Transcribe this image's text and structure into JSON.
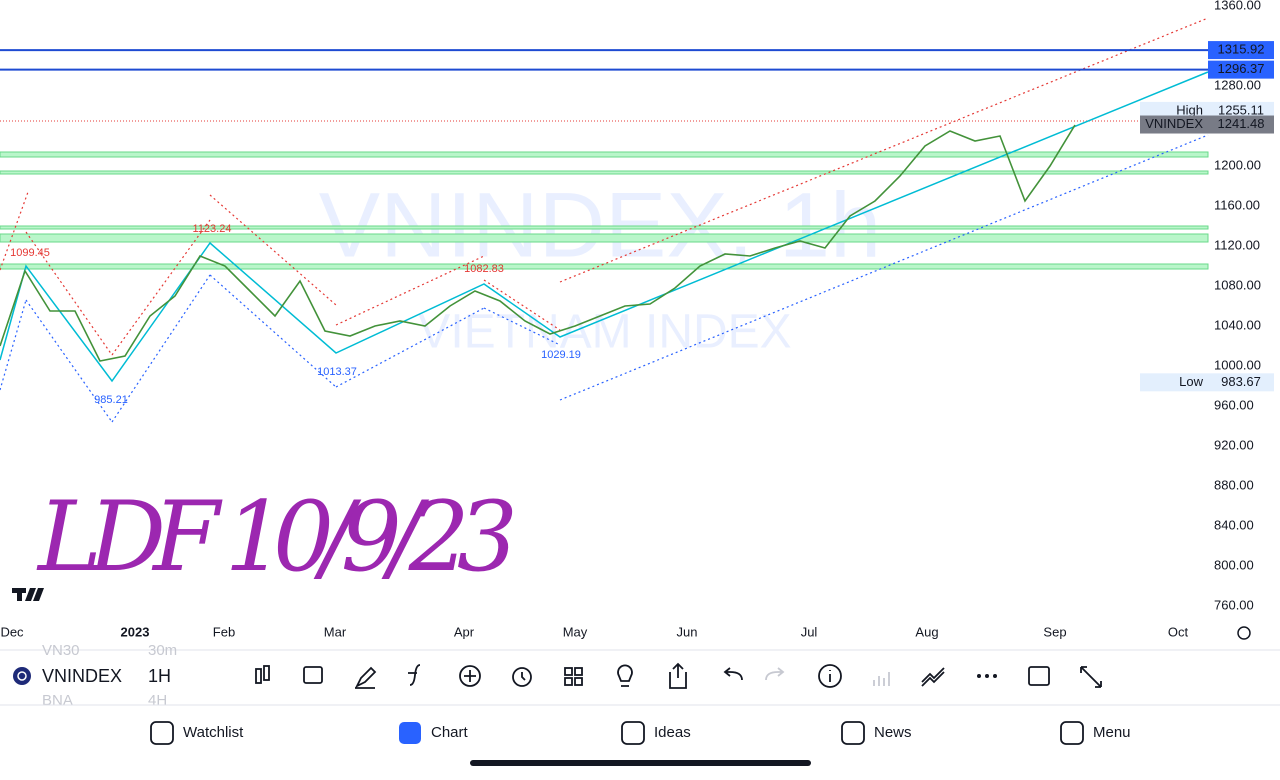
{
  "chart": {
    "watermark": "VNINDEX, 1h",
    "watermark_sub": "VIETNAM INDEX",
    "yticks": [
      {
        "value": 1360,
        "label": "1360.00"
      },
      {
        "value": 1280,
        "label": "1280.00"
      },
      {
        "value": 1200,
        "label": "1200.00"
      },
      {
        "value": 1160,
        "label": "1160.00"
      },
      {
        "value": 1120,
        "label": "1120.00"
      },
      {
        "value": 1080,
        "label": "1080.00"
      },
      {
        "value": 1040,
        "label": "1040.00"
      },
      {
        "value": 1000,
        "label": "1000.00"
      },
      {
        "value": 960,
        "label": "960.00"
      },
      {
        "value": 920,
        "label": "920.00"
      },
      {
        "value": 880,
        "label": "880.00"
      },
      {
        "value": 840,
        "label": "840.00"
      },
      {
        "value": 800,
        "label": "800.00"
      },
      {
        "value": 760,
        "label": "760.00"
      }
    ],
    "months": [
      "Dec",
      "2023",
      "Feb",
      "Mar",
      "Apr",
      "May",
      "Jun",
      "Jul",
      "Aug",
      "Sep",
      "Oct"
    ],
    "levels": [
      {
        "value": 1315.92,
        "label": "1315.92"
      },
      {
        "value": 1296.37,
        "label": "1296.37"
      }
    ],
    "high": {
      "name": "High",
      "label": "1255.11",
      "value": 1255.11
    },
    "last": {
      "name": "VNINDEX",
      "label": "1241.48",
      "value": 1241.48
    },
    "low": {
      "name": "Low",
      "label": "983.67",
      "value": 983.67
    },
    "pivots": [
      {
        "label": "1099.45",
        "color": "#e53935"
      },
      {
        "label": "1123.24",
        "color": "#e53935"
      },
      {
        "label": "1082.83",
        "color": "#e53935"
      },
      {
        "label": "985.21",
        "color": "#2962ff"
      },
      {
        "label": "1013.37",
        "color": "#2962ff"
      },
      {
        "label": "1029.19",
        "color": "#2962ff"
      }
    ],
    "price": [
      1020,
      1095,
      1055,
      1055,
      1005,
      1010,
      1050,
      1070,
      1110,
      1100,
      1075,
      1050,
      1085,
      1035,
      1030,
      1040,
      1045,
      1040,
      1060,
      1075,
      1065,
      1045,
      1032,
      1040,
      1050,
      1060,
      1062,
      1078,
      1100,
      1112,
      1110,
      1118,
      1125,
      1118,
      1150,
      1165,
      1190,
      1220,
      1235,
      1225,
      1230,
      1165,
      1200,
      1241
    ],
    "note": "LDF 10/9/23"
  },
  "toolbar": {
    "symbol": "VNINDEX",
    "interval": "1H",
    "ghost": [
      "VN30",
      "30m",
      "BNA",
      "4H"
    ]
  },
  "nav": [
    "Watchlist",
    "Chart",
    "Ideas",
    "News",
    "Menu"
  ]
}
